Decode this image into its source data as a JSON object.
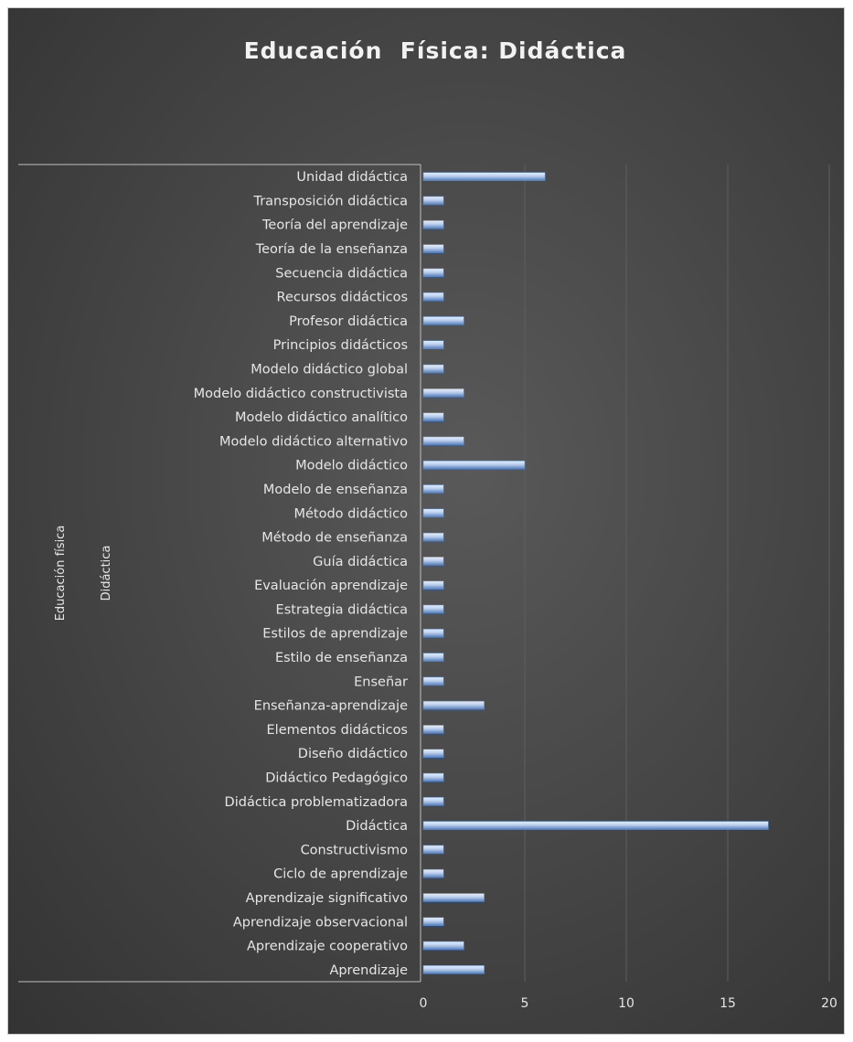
{
  "chart_data": {
    "type": "bar",
    "orientation": "horizontal",
    "title": "Educación  Física: Didáctica",
    "group_labels": [
      "Educación física",
      "Didáctica"
    ],
    "categories": [
      "Unidad didáctica",
      "Transposición didáctica",
      "Teoría del aprendizaje",
      "Teoría de la enseñanza",
      "Secuencia didáctica",
      "Recursos didácticos",
      "Profesor didáctica",
      "Principios didácticos",
      "Modelo didáctico global",
      "Modelo didáctico constructivista",
      "Modelo didáctico analítico",
      "Modelo didáctico alternativo",
      "Modelo didáctico",
      "Modelo de enseñanza",
      "Método didáctico",
      "Método de enseñanza",
      "Guía didáctica",
      "Evaluación aprendizaje",
      "Estrategia didáctica",
      "Estilos de aprendizaje",
      "Estilo de enseñanza",
      "Enseñar",
      "Enseñanza-aprendizaje",
      "Elementos didácticos",
      "Diseño didáctico",
      "Didáctico Pedagógico",
      "Didáctica problematizadora",
      "Didáctica",
      "Constructivismo",
      "Ciclo de aprendizaje",
      "Aprendizaje significativo",
      "Aprendizaje observacional",
      "Aprendizaje cooperativo",
      "Aprendizaje"
    ],
    "values": [
      6,
      1,
      1,
      1,
      1,
      1,
      2,
      1,
      1,
      2,
      1,
      2,
      5,
      1,
      1,
      1,
      1,
      1,
      1,
      1,
      1,
      1,
      3,
      1,
      1,
      1,
      1,
      17,
      1,
      1,
      3,
      1,
      2,
      3
    ],
    "xlim": [
      0,
      20
    ],
    "xticks": [
      "0",
      "5",
      "10",
      "15",
      "20"
    ],
    "grid": true,
    "colors": {
      "background": "#444444",
      "bar_light": "#dce8f7",
      "bar_dark": "#5b86c4",
      "gridline": "#5e5e5e",
      "text": "#e6e6e6"
    }
  }
}
